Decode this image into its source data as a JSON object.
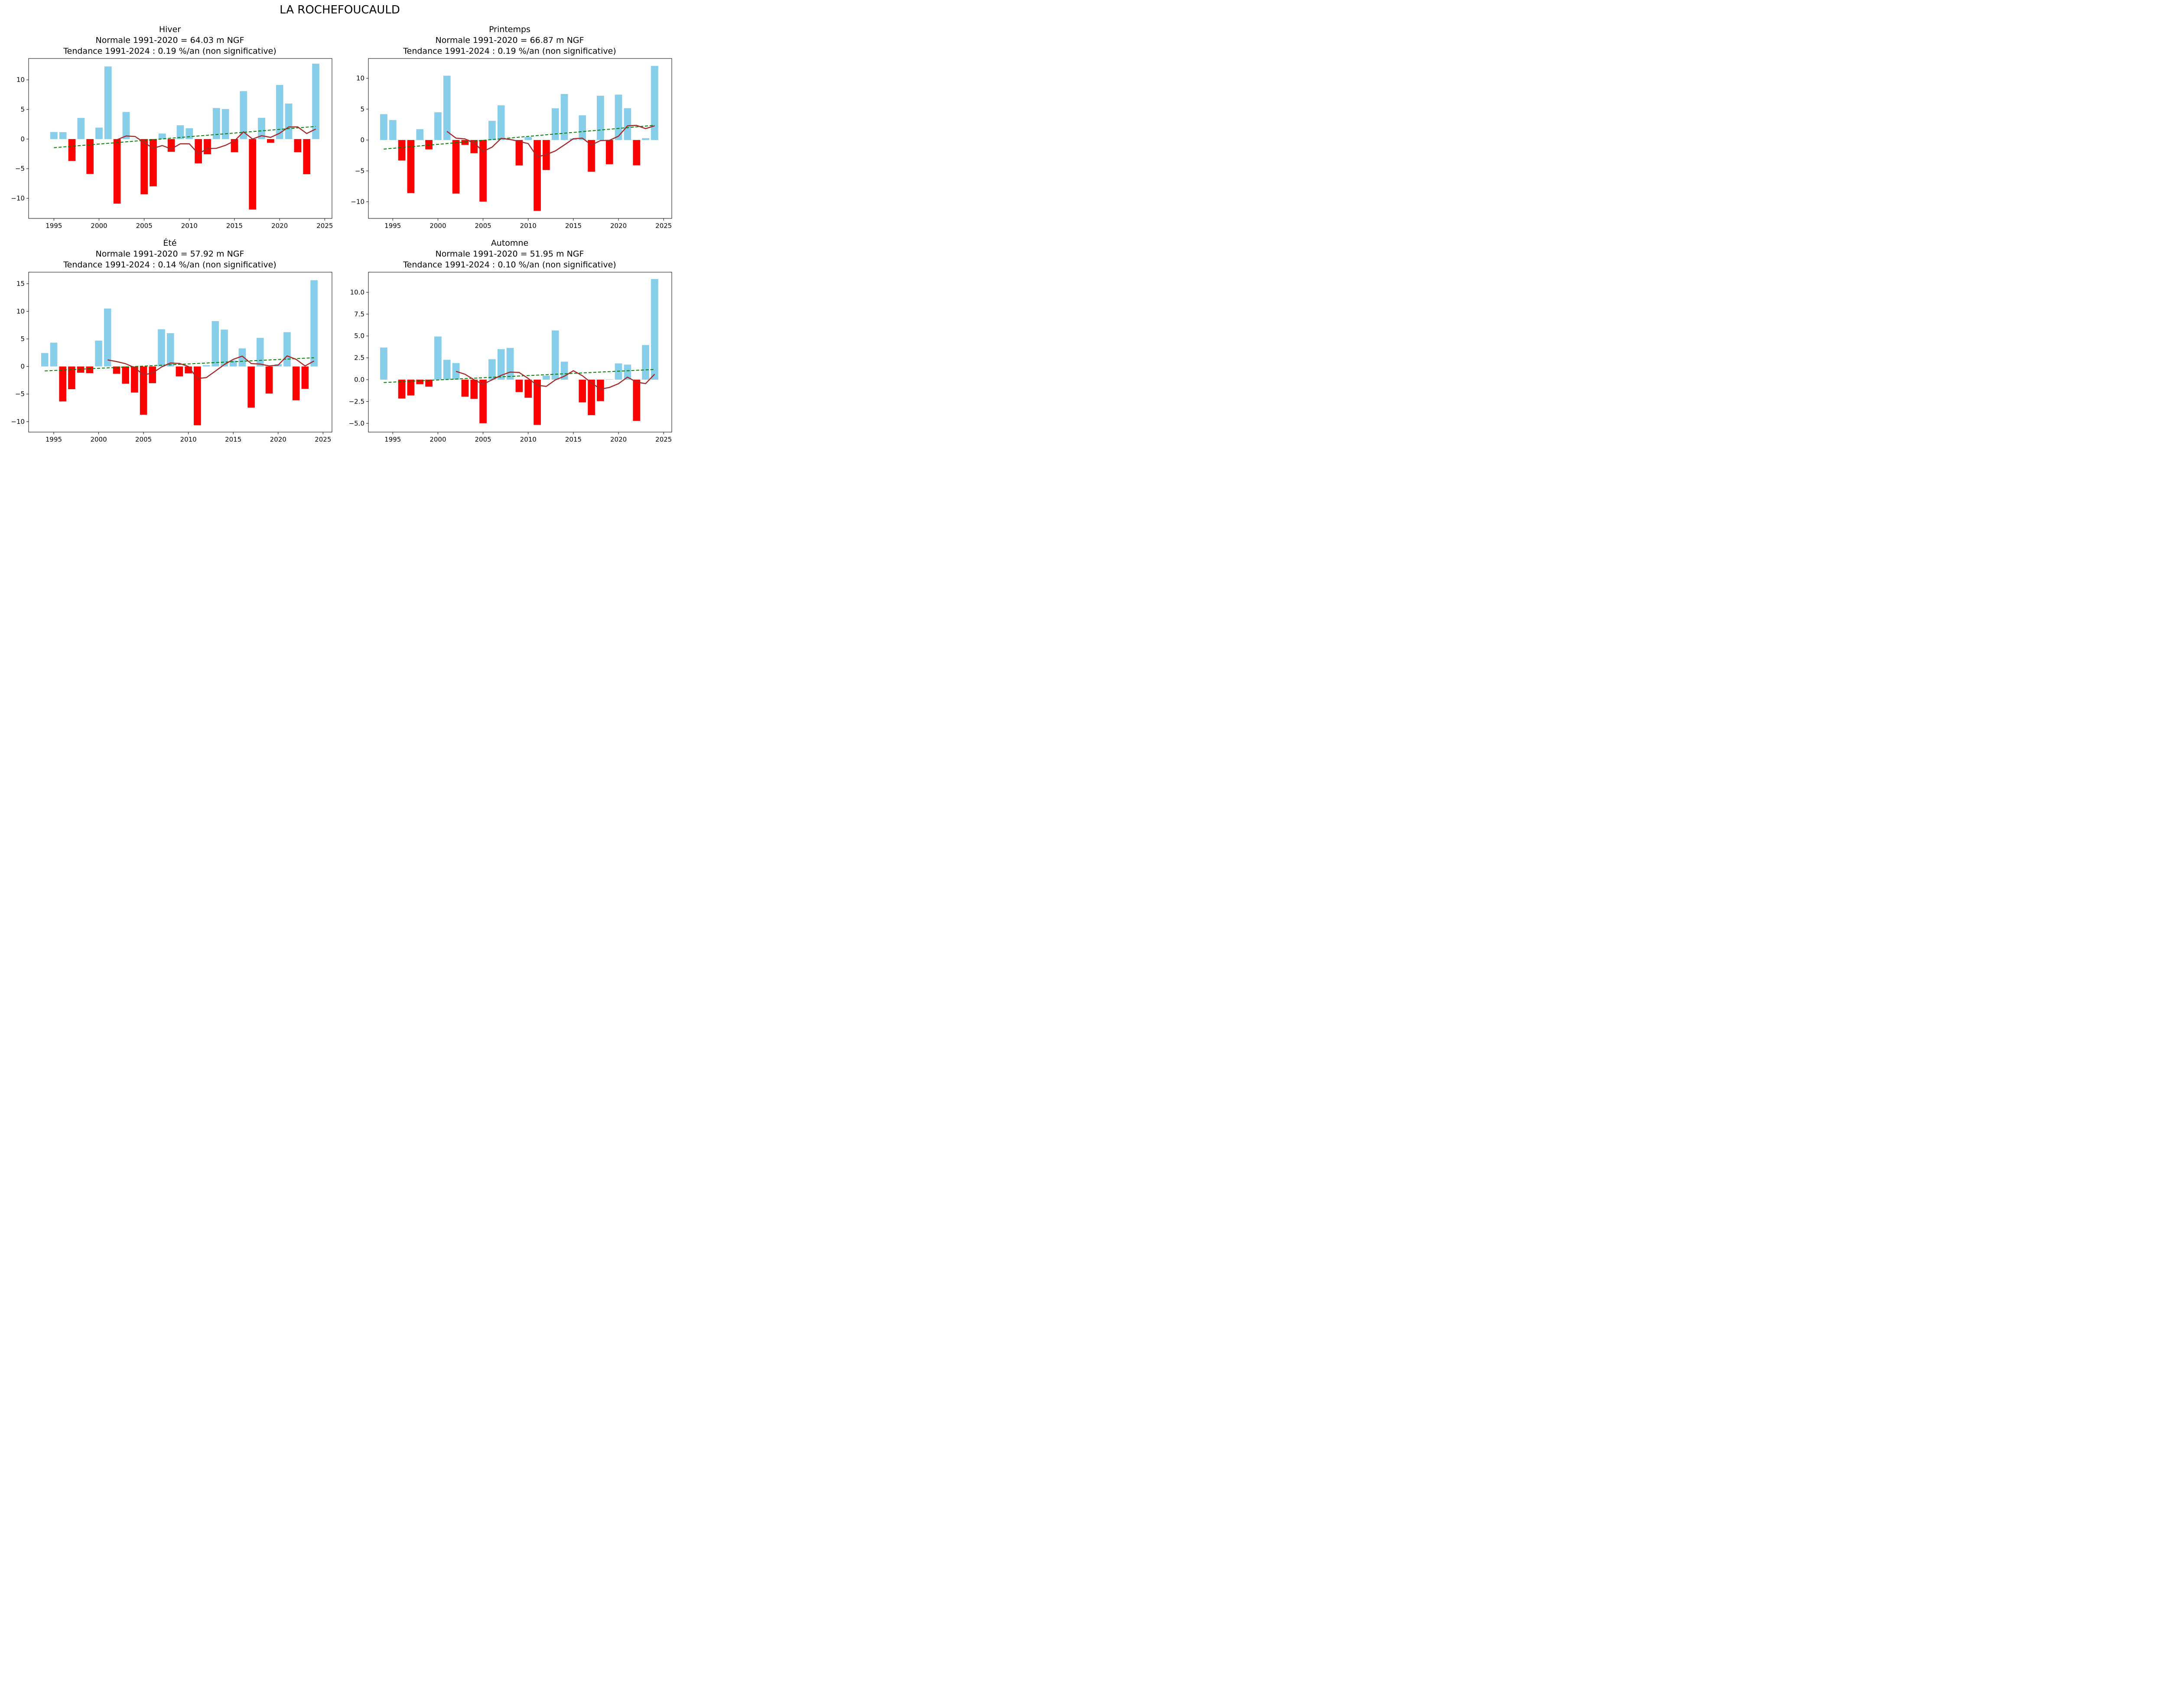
{
  "suptitle": "LA ROCHEFOUCAULD",
  "colors": {
    "positive_bar": "#87CEEB",
    "negative_bar": "#FF0000",
    "moving_average": "#A52A2A",
    "trend": "#008000",
    "axes": "#000000"
  },
  "chart_data": [
    {
      "type": "bar",
      "title_lines": [
        "Hiver",
        "Normale 1991-2020 = 64.03 m NGF",
        "Tendance 1991-2024 : 0.19 %/an (non significative)"
      ],
      "xlabel": "",
      "ylabel": "",
      "xlim": [
        1992.2,
        2025.8
      ],
      "ylim": [
        -13.4,
        13.6
      ],
      "xticks": [
        1995,
        2000,
        2005,
        2010,
        2015,
        2020,
        2025
      ],
      "yticks": [
        -10,
        -5,
        0,
        5,
        10
      ],
      "ytick_labels": [
        "−10",
        "−5",
        "0",
        "5",
        "10"
      ],
      "years": [
        1995,
        1996,
        1997,
        1998,
        1999,
        2000,
        2001,
        2002,
        2003,
        2004,
        2005,
        2006,
        2007,
        2008,
        2009,
        2010,
        2011,
        2012,
        2013,
        2014,
        2015,
        2016,
        2017,
        2018,
        2019,
        2020,
        2021,
        2022,
        2023,
        2024
      ],
      "values": [
        1.2,
        1.17,
        -3.7,
        3.57,
        -5.9,
        1.94,
        12.26,
        -10.9,
        4.57,
        0.05,
        -9.33,
        -7.98,
        0.93,
        -2.15,
        2.33,
        1.83,
        -4.1,
        -2.57,
        5.24,
        5.07,
        -2.22,
        8.09,
        -11.9,
        3.59,
        -0.63,
        9.13,
        6.0,
        -2.22,
        -5.93,
        12.72
      ],
      "moving_average": {
        "years": [
          2002,
          2003,
          2004,
          2005,
          2006,
          2007,
          2008,
          2009,
          2010,
          2011,
          2012,
          2013,
          2014,
          2015,
          2016,
          2017,
          2018,
          2019,
          2020,
          2021,
          2022,
          2023,
          2024
        ],
        "values": [
          -0.1,
          0.52,
          0.43,
          -0.6,
          -1.56,
          -1.09,
          -1.67,
          -0.8,
          -0.8,
          -2.48,
          -1.63,
          -1.56,
          -1.06,
          -0.31,
          1.22,
          0.0,
          0.57,
          0.28,
          0.98,
          2.04,
          2.06,
          0.94,
          1.69
        ]
      },
      "trend": {
        "years": [
          1995,
          2024
        ],
        "values": [
          -1.46,
          2.13
        ]
      }
    },
    {
      "type": "bar",
      "title_lines": [
        "Printemps",
        "Normale 1991-2020 = 66.87 m NGF",
        "Tendance 1991-2024 : 0.19 %/an (non significative)"
      ],
      "xlabel": "",
      "ylabel": "",
      "xlim": [
        1992.3,
        2025.9
      ],
      "ylim": [
        -12.7,
        13.2
      ],
      "xticks": [
        1995,
        2000,
        2005,
        2010,
        2015,
        2020,
        2025
      ],
      "yticks": [
        -10,
        -5,
        0,
        5,
        10
      ],
      "ytick_labels": [
        "−10",
        "−5",
        "0",
        "5",
        "10"
      ],
      "years": [
        1994,
        1995,
        1996,
        1997,
        1998,
        1999,
        2000,
        2001,
        2002,
        2003,
        2004,
        2005,
        2006,
        2007,
        2008,
        2009,
        2010,
        2011,
        2012,
        2013,
        2014,
        2015,
        2016,
        2017,
        2018,
        2019,
        2020,
        2021,
        2022,
        2023,
        2024
      ],
      "values": [
        4.19,
        3.23,
        -3.32,
        -8.6,
        1.75,
        -1.52,
        4.49,
        10.42,
        -8.67,
        -0.8,
        -2.14,
        -9.98,
        3.11,
        5.62,
        0.05,
        -4.12,
        0.48,
        -11.48,
        -4.86,
        5.14,
        7.46,
        0.25,
        4.01,
        -5.14,
        7.17,
        -3.92,
        7.35,
        5.16,
        -4.1,
        0.3,
        12.0
      ],
      "moving_average": {
        "years": [
          2001,
          2002,
          2003,
          2004,
          2005,
          2006,
          2007,
          2008,
          2009,
          2010,
          2011,
          2012,
          2013,
          2014,
          2015,
          2016,
          2017,
          2018,
          2019,
          2020,
          2021,
          2022,
          2023,
          2024
        ],
        "values": [
          1.4,
          0.3,
          0.18,
          -0.44,
          -1.86,
          -1.15,
          0.27,
          0.09,
          -0.23,
          -0.58,
          -2.74,
          -2.35,
          -1.77,
          -0.8,
          0.21,
          0.3,
          -0.8,
          -0.09,
          -0.05,
          0.62,
          2.3,
          2.37,
          1.84,
          2.3
        ]
      },
      "trend": {
        "years": [
          1994,
          2024
        ],
        "values": [
          -1.47,
          2.39
        ]
      }
    },
    {
      "type": "bar",
      "title_lines": [
        "Été",
        "Normale 1991-2020 = 57.92 m NGF",
        "Tendance 1991-2024 : 0.14 %/an (non significative)"
      ],
      "xlabel": "",
      "ylabel": "",
      "xlim": [
        1992.2,
        2026.0
      ],
      "ylim": [
        -11.9,
        17.1
      ],
      "xticks": [
        1995,
        2000,
        2005,
        2010,
        2015,
        2020,
        2025
      ],
      "yticks": [
        -10,
        -5,
        0,
        5,
        10,
        15
      ],
      "ytick_labels": [
        "−10",
        "−5",
        "0",
        "5",
        "10",
        "15"
      ],
      "years": [
        1994,
        1995,
        1996,
        1997,
        1998,
        1999,
        2000,
        2001,
        2002,
        2003,
        2004,
        2005,
        2006,
        2007,
        2008,
        2009,
        2010,
        2011,
        2012,
        2013,
        2014,
        2015,
        2016,
        2017,
        2018,
        2019,
        2020,
        2021,
        2022,
        2023,
        2024
      ],
      "values": [
        2.44,
        4.32,
        -6.34,
        -4.12,
        -1.13,
        -1.21,
        4.69,
        10.5,
        -1.33,
        -3.13,
        -4.73,
        -8.75,
        -3.03,
        6.75,
        6.04,
        -1.8,
        -1.25,
        -10.65,
        0.24,
        8.22,
        6.69,
        1.09,
        3.27,
        -7.47,
        5.19,
        -4.91,
        0.42,
        6.22,
        -6.14,
        -4.06,
        15.64
      ],
      "moving_average": {
        "years": [
          2001,
          2002,
          2003,
          2004,
          2005,
          2006,
          2007,
          2008,
          2009,
          2010,
          2011,
          2012,
          2013,
          2014,
          2015,
          2016,
          2017,
          2018,
          2019,
          2020,
          2021,
          2022,
          2023,
          2024
        ],
        "values": [
          1.19,
          0.89,
          0.5,
          -0.2,
          -1.52,
          -1.19,
          -0.1,
          0.63,
          0.55,
          0.0,
          -2.18,
          -2.02,
          -0.85,
          0.34,
          1.29,
          1.88,
          0.53,
          0.44,
          0.1,
          0.24,
          1.92,
          1.29,
          0.1,
          0.99
        ]
      },
      "trend": {
        "years": [
          1994,
          2024
        ],
        "values": [
          -0.81,
          1.58
        ]
      }
    },
    {
      "type": "bar",
      "title_lines": [
        "Automne",
        "Normale 1991-2020 = 51.95 m NGF",
        "Tendance 1991-2024 : 0.10 %/an (non significative)"
      ],
      "xlabel": "",
      "ylabel": "",
      "xlim": [
        1992.3,
        2025.9
      ],
      "ylim": [
        -6.0,
        12.3
      ],
      "xticks": [
        1995,
        2000,
        2005,
        2010,
        2015,
        2020,
        2025
      ],
      "yticks": [
        -5,
        -2.5,
        0,
        2.5,
        5,
        7.5,
        10
      ],
      "ytick_labels": [
        "−5.0",
        "−2.5",
        "0.0",
        "2.5",
        "5.0",
        "7.5",
        "10.0"
      ],
      "years": [
        1994,
        1996,
        1997,
        1998,
        1999,
        2000,
        2001,
        2002,
        2003,
        2004,
        2005,
        2006,
        2007,
        2008,
        2009,
        2010,
        2011,
        2012,
        2013,
        2014,
        2016,
        2017,
        2018,
        2019,
        2020,
        2021,
        2022,
        2023,
        2024
      ],
      "values": [
        3.67,
        -2.16,
        -1.81,
        -0.52,
        -0.8,
        4.94,
        2.27,
        1.9,
        -1.95,
        -2.2,
        -4.99,
        2.34,
        3.49,
        3.63,
        -1.42,
        -2.07,
        -5.18,
        0.46,
        5.63,
        2.06,
        -2.6,
        -4.06,
        -2.46,
        0.04,
        1.86,
        1.72,
        -4.72,
        3.96,
        11.51
      ],
      "moving_average": {
        "years": [
          2002,
          2003,
          2004,
          2005,
          2006,
          2007,
          2008,
          2009,
          2010,
          2011,
          2012,
          2013,
          2014,
          2015,
          2016,
          2017,
          2018,
          2019,
          2020,
          2021,
          2022,
          2023,
          2024
        ],
        "values": [
          0.95,
          0.62,
          -0.01,
          -0.52,
          -0.01,
          0.49,
          0.87,
          0.82,
          0.14,
          -0.64,
          -0.77,
          -0.03,
          0.39,
          1.02,
          0.45,
          -0.36,
          -1.09,
          -0.89,
          -0.46,
          0.29,
          -0.28,
          -0.45,
          0.62
        ]
      },
      "trend": {
        "years": [
          1994,
          2024
        ],
        "values": [
          -0.33,
          1.17
        ]
      }
    }
  ]
}
